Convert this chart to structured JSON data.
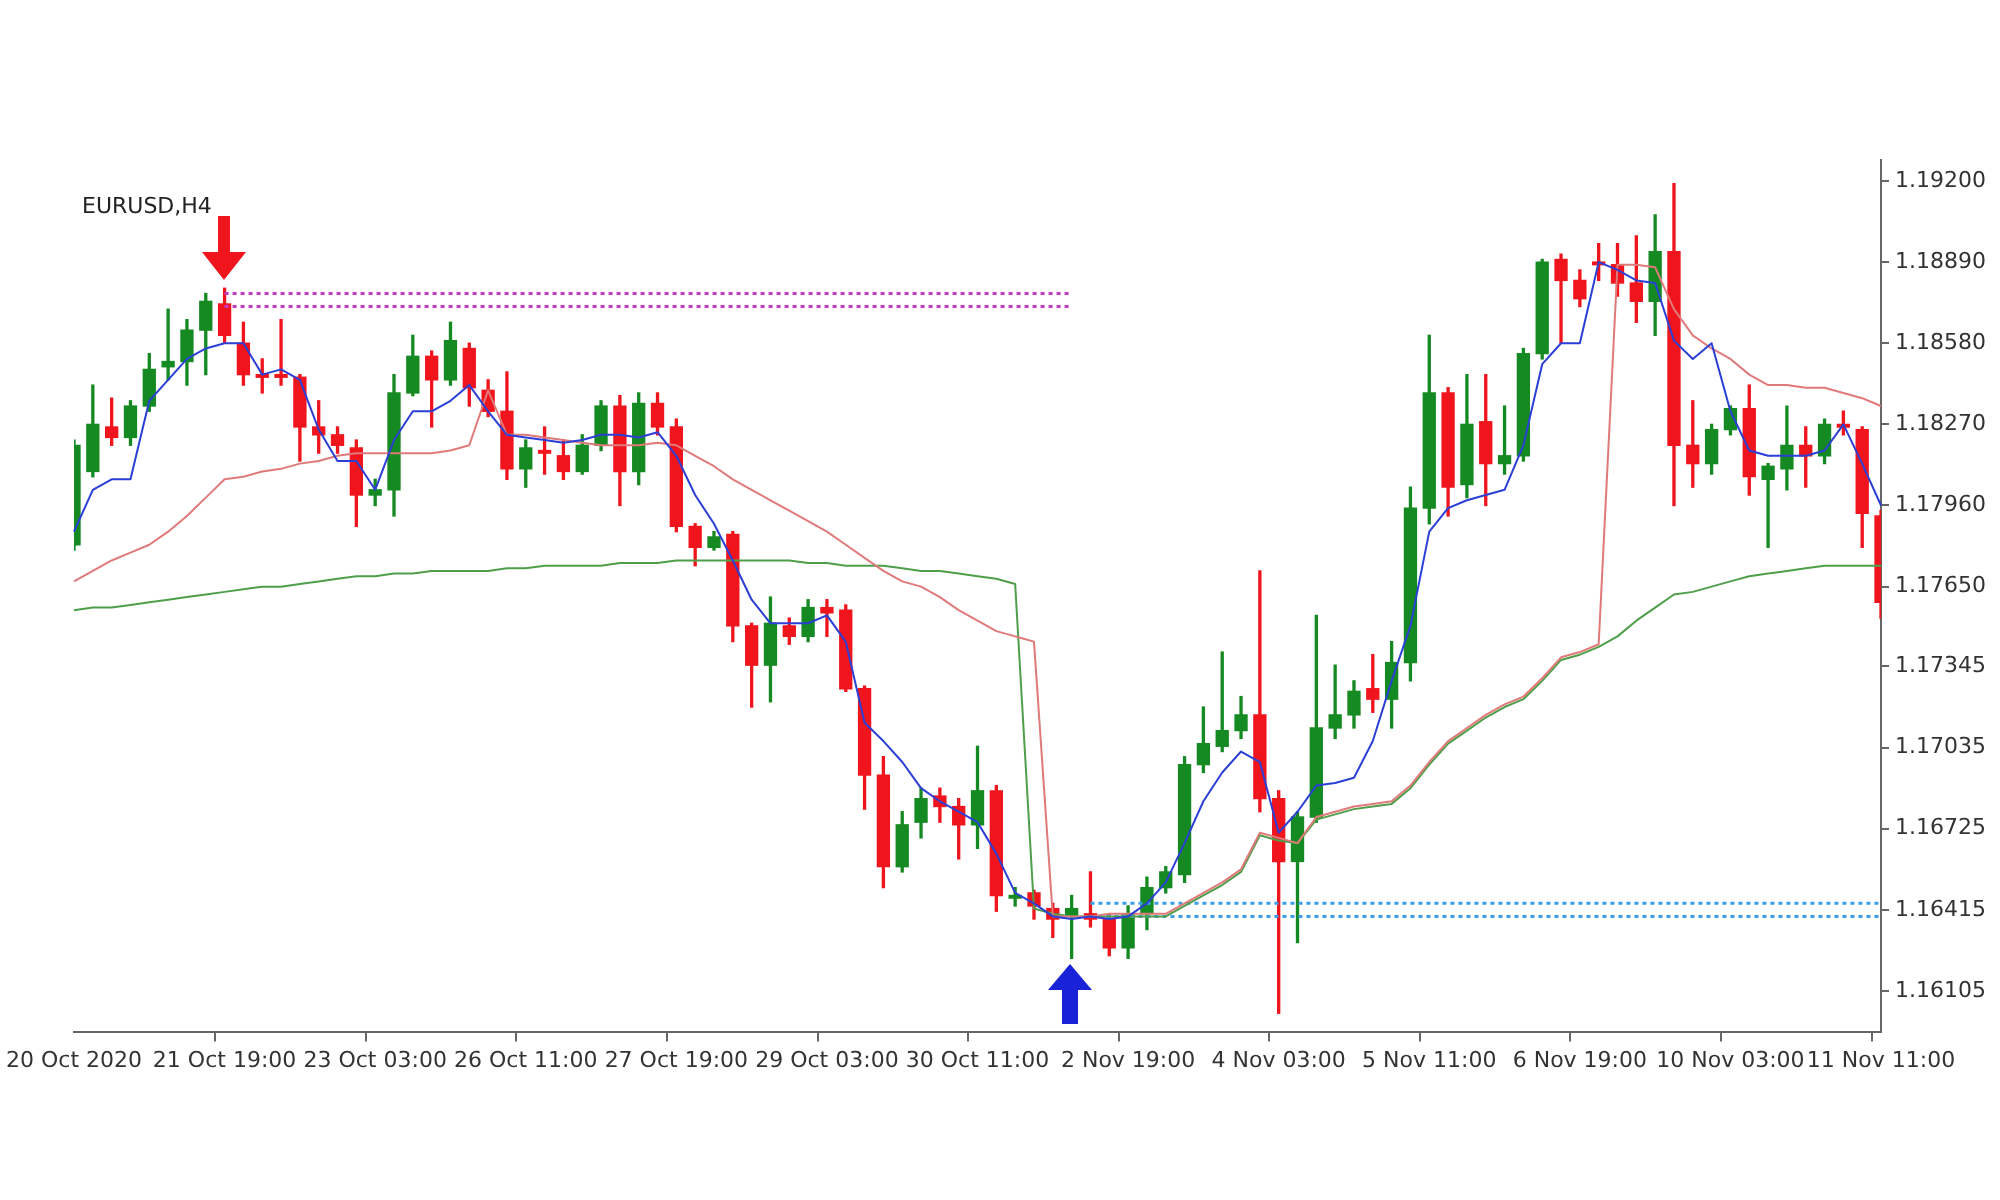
{
  "chart_data": {
    "type": "candlestick",
    "title": "EURUSD,H4",
    "categories": [
      "20 Oct 2020",
      null,
      null,
      null,
      null,
      null,
      null,
      null,
      "21 Oct 19:00",
      null,
      null,
      null,
      null,
      null,
      null,
      null,
      "23 Oct 03:00",
      null,
      null,
      null,
      null,
      null,
      null,
      null,
      "26 Oct 11:00",
      null,
      null,
      null,
      null,
      null,
      null,
      null,
      "27 Oct 19:00",
      null,
      null,
      null,
      null,
      null,
      null,
      null,
      "29 Oct 03:00",
      null,
      null,
      null,
      null,
      null,
      null,
      null,
      "30 Oct 11:00",
      null,
      null,
      null,
      null,
      null,
      null,
      null,
      "2 Nov 19:00",
      null,
      null,
      null,
      null,
      null,
      null,
      null,
      "4 Nov 03:00",
      null,
      null,
      null,
      null,
      null,
      null,
      null,
      "5 Nov 11:00",
      null,
      null,
      null,
      null,
      null,
      null,
      null,
      "6 Nov 19:00",
      null,
      null,
      null,
      null,
      null,
      null,
      null,
      "10 Nov 03:00",
      null,
      null,
      null,
      null,
      null,
      null,
      null,
      "11 Nov 11:00"
    ],
    "ohlc": [
      [
        1.1781,
        1.1821,
        1.1779,
        1.1819
      ],
      [
        1.1809,
        1.1842,
        1.1807,
        1.1827
      ],
      [
        1.1826,
        1.1837,
        1.1819,
        1.1822
      ],
      [
        1.1822,
        1.1836,
        1.1819,
        1.1834
      ],
      [
        1.1834,
        1.1854,
        1.1832,
        1.1848
      ],
      [
        1.1849,
        1.1871,
        1.1844,
        1.1851
      ],
      [
        1.1851,
        1.1867,
        1.1842,
        1.1863
      ],
      [
        1.1863,
        1.1877,
        1.1846,
        1.1874
      ],
      [
        1.1873,
        1.1879,
        1.1858,
        1.1861
      ],
      [
        1.1858,
        1.1866,
        1.1842,
        1.1846
      ],
      [
        1.1846,
        1.1852,
        1.1839,
        1.1845
      ],
      [
        1.1846,
        1.1867,
        1.1842,
        1.1845
      ],
      [
        1.1845,
        1.1846,
        1.1813,
        1.1826
      ],
      [
        1.1826,
        1.1836,
        1.1816,
        1.1823
      ],
      [
        1.1823,
        1.1826,
        1.1816,
        1.1819
      ],
      [
        1.1818,
        1.1821,
        1.1788,
        1.18
      ],
      [
        1.18,
        1.1806,
        1.1796,
        1.1802
      ],
      [
        1.1802,
        1.1846,
        1.1792,
        1.1839
      ],
      [
        1.1839,
        1.1861,
        1.1838,
        1.1853
      ],
      [
        1.1853,
        1.1855,
        1.1826,
        1.1844
      ],
      [
        1.1844,
        1.1866,
        1.1842,
        1.1859
      ],
      [
        1.1856,
        1.1858,
        1.1834,
        1.1841
      ],
      [
        1.184,
        1.1844,
        1.183,
        1.1832
      ],
      [
        1.1832,
        1.1847,
        1.1806,
        1.181
      ],
      [
        1.181,
        1.1821,
        1.1803,
        1.1818
      ],
      [
        1.1817,
        1.1826,
        1.1808,
        1.1816
      ],
      [
        1.1815,
        1.1821,
        1.1806,
        1.1809
      ],
      [
        1.1809,
        1.1823,
        1.1808,
        1.1819
      ],
      [
        1.1819,
        1.1836,
        1.1817,
        1.1834
      ],
      [
        1.1834,
        1.1838,
        1.1796,
        1.1809
      ],
      [
        1.1809,
        1.1839,
        1.1804,
        1.1835
      ],
      [
        1.1835,
        1.1839,
        1.1823,
        1.1826
      ],
      [
        1.1826,
        1.1829,
        1.1786,
        1.1788
      ],
      [
        1.1788,
        1.1789,
        1.1773,
        1.178
      ],
      [
        1.178,
        1.1786,
        1.1779,
        1.1784
      ],
      [
        1.1785,
        1.1786,
        1.1744,
        1.175
      ],
      [
        1.175,
        1.1751,
        1.1719,
        1.1735
      ],
      [
        1.1735,
        1.1761,
        1.1721,
        1.1751
      ],
      [
        1.175,
        1.1753,
        1.1743,
        1.1746
      ],
      [
        1.1746,
        1.176,
        1.1744,
        1.1757
      ],
      [
        1.1757,
        1.176,
        1.1746,
        1.1755
      ],
      [
        1.1756,
        1.1758,
        1.1725,
        1.1726
      ],
      [
        1.1726,
        1.1727,
        1.168,
        1.1693
      ],
      [
        1.1693,
        1.17,
        1.165,
        1.1658
      ],
      [
        1.1658,
        1.1679,
        1.1656,
        1.1674
      ],
      [
        1.1675,
        1.1688,
        1.1669,
        1.1684
      ],
      [
        1.1685,
        1.1688,
        1.1675,
        1.1681
      ],
      [
        1.1681,
        1.1684,
        1.1661,
        1.1674
      ],
      [
        1.1674,
        1.1704,
        1.1665,
        1.1687
      ],
      [
        1.1687,
        1.1689,
        1.1641,
        1.1647
      ],
      [
        1.1646,
        1.165,
        1.1643,
        1.1647
      ],
      [
        1.1648,
        1.1649,
        1.1638,
        1.1643
      ],
      [
        1.1642,
        1.1644,
        1.1631,
        1.1638
      ],
      [
        1.1639,
        1.1647,
        1.1623,
        1.1642
      ],
      [
        1.164,
        1.1656,
        1.1635,
        1.1638
      ],
      [
        1.1638,
        1.164,
        1.1624,
        1.1627
      ],
      [
        1.1627,
        1.1643,
        1.1623,
        1.164
      ],
      [
        1.164,
        1.1654,
        1.1634,
        1.165
      ],
      [
        1.165,
        1.1658,
        1.1648,
        1.1656
      ],
      [
        1.1655,
        1.17,
        1.1652,
        1.1697
      ],
      [
        1.1697,
        1.1719,
        1.1694,
        1.1705
      ],
      [
        1.1704,
        1.174,
        1.1702,
        1.171
      ],
      [
        1.171,
        1.1723,
        1.1707,
        1.1716
      ],
      [
        1.1716,
        1.1771,
        1.1679,
        1.1684
      ],
      [
        1.1684,
        1.1687,
        1.1602,
        1.166
      ],
      [
        1.166,
        1.1679,
        1.1629,
        1.1677
      ],
      [
        1.1677,
        1.1754,
        1.1675,
        1.1711
      ],
      [
        1.1711,
        1.1735,
        1.1707,
        1.1716
      ],
      [
        1.1716,
        1.1729,
        1.1711,
        1.1725
      ],
      [
        1.1726,
        1.1739,
        1.1717,
        1.1722
      ],
      [
        1.1722,
        1.1744,
        1.1711,
        1.1736
      ],
      [
        1.1736,
        1.1803,
        1.1729,
        1.1795
      ],
      [
        1.1795,
        1.1861,
        1.1789,
        1.1839
      ],
      [
        1.1839,
        1.1841,
        1.1792,
        1.1803
      ],
      [
        1.1804,
        1.1846,
        1.1799,
        1.1827
      ],
      [
        1.1828,
        1.1846,
        1.1796,
        1.1812
      ],
      [
        1.1812,
        1.1834,
        1.1808,
        1.1815
      ],
      [
        1.1815,
        1.1856,
        1.1813,
        1.1854
      ],
      [
        1.1854,
        1.189,
        1.1852,
        1.1889
      ],
      [
        1.189,
        1.1892,
        1.1858,
        1.1882
      ],
      [
        1.1882,
        1.1886,
        1.1872,
        1.1875
      ],
      [
        1.1889,
        1.1896,
        1.1882,
        1.1888
      ],
      [
        1.1888,
        1.1896,
        1.1876,
        1.1881
      ],
      [
        1.1881,
        1.1899,
        1.1866,
        1.1874
      ],
      [
        1.1874,
        1.1907,
        1.1861,
        1.1893
      ],
      [
        1.1893,
        1.1919,
        1.1796,
        1.1819
      ],
      [
        1.1819,
        1.1836,
        1.1803,
        1.1812
      ],
      [
        1.1812,
        1.1827,
        1.1808,
        1.1825
      ],
      [
        1.1825,
        1.1834,
        1.1823,
        1.1833
      ],
      [
        1.1833,
        1.1842,
        1.18,
        1.1807
      ],
      [
        1.1806,
        1.1812,
        1.178,
        1.1811
      ],
      [
        1.181,
        1.1834,
        1.1802,
        1.1819
      ],
      [
        1.1819,
        1.1826,
        1.1803,
        1.1815
      ],
      [
        1.1815,
        1.1829,
        1.1812,
        1.1827
      ],
      [
        1.1827,
        1.1832,
        1.1823,
        1.1826
      ],
      [
        1.1825,
        1.1826,
        1.178,
        1.1793
      ],
      [
        1.1792,
        1.1794,
        1.1753,
        1.1759
      ]
    ],
    "colors": [
      "#168a22",
      "#168a22",
      "#f0141c",
      "#168a22",
      "#168a22",
      "#168a22",
      "#168a22",
      "#168a22",
      "#f0141c",
      "#f0141c",
      "#f0141c",
      "#f0141c",
      "#f0141c",
      "#f0141c",
      "#f0141c",
      "#f0141c",
      "#168a22",
      "#168a22",
      "#168a22",
      "#f0141c",
      "#168a22",
      "#f0141c",
      "#f0141c",
      "#f0141c",
      "#168a22",
      "#f0141c",
      "#f0141c",
      "#168a22",
      "#168a22",
      "#f0141c",
      "#168a22",
      "#f0141c",
      "#f0141c",
      "#f0141c",
      "#168a22",
      "#f0141c",
      "#f0141c",
      "#168a22",
      "#f0141c",
      "#168a22",
      "#f0141c",
      "#f0141c",
      "#f0141c",
      "#f0141c",
      "#168a22",
      "#168a22",
      "#f0141c",
      "#f0141c",
      "#168a22",
      "#f0141c",
      "#168a22",
      "#f0141c",
      "#f0141c",
      "#168a22",
      "#f0141c",
      "#f0141c",
      "#168a22",
      "#168a22",
      "#168a22",
      "#168a22",
      "#168a22",
      "#168a22",
      "#168a22",
      "#f0141c",
      "#f0141c",
      "#168a22",
      "#168a22",
      "#168a22",
      "#168a22",
      "#f0141c",
      "#168a22",
      "#168a22",
      "#168a22",
      "#f0141c",
      "#168a22",
      "#f0141c",
      "#168a22",
      "#168a22",
      "#168a22",
      "#f0141c",
      "#f0141c",
      "#f0141c",
      "#f0141c",
      "#f0141c",
      "#168a22",
      "#f0141c",
      "#f0141c",
      "#168a22",
      "#168a22",
      "#f0141c",
      "#168a22",
      "#168a22",
      "#f0141c",
      "#168a22",
      "#f0141c",
      "#f0141c",
      "#f0141c"
    ],
    "series": [
      {
        "type": "line",
        "color": "#2b3fd6",
        "values": [
          1.1786,
          1.1802,
          1.1806,
          1.1806,
          1.1836,
          1.1844,
          1.1852,
          1.1856,
          1.1858,
          1.1858,
          1.1846,
          1.1848,
          1.1844,
          1.1825,
          1.1813,
          1.1813,
          1.1802,
          1.1821,
          1.1832,
          1.1832,
          1.1836,
          1.1842,
          1.1832,
          1.1823,
          1.1822,
          1.1821,
          1.182,
          1.1821,
          1.1823,
          1.1823,
          1.1822,
          1.1824,
          1.1815,
          1.18,
          1.1789,
          1.1775,
          1.176,
          1.1751,
          1.1751,
          1.1751,
          1.1754,
          1.1744,
          1.1713,
          1.1706,
          1.1698,
          1.1688,
          1.1683,
          1.1679,
          1.1675,
          1.1663,
          1.1648,
          1.1644,
          1.1639,
          1.1638,
          1.1639,
          1.1638,
          1.1639,
          1.1644,
          1.1652,
          1.1667,
          1.1683,
          1.1694,
          1.1702,
          1.1698,
          1.1671,
          1.1679,
          1.1689,
          1.169,
          1.1692,
          1.1706,
          1.1729,
          1.175,
          1.1786,
          1.1795,
          1.1798,
          1.18,
          1.1802,
          1.1819,
          1.185,
          1.1858,
          1.1858,
          1.1889,
          1.1886,
          1.1882,
          1.1881,
          1.1859,
          1.1852,
          1.1858,
          1.1832,
          1.1817,
          1.1815,
          1.1815,
          1.1815,
          1.1817,
          1.1827,
          1.1812,
          1.1796
        ]
      },
      {
        "type": "line",
        "color": "#e07a7a",
        "values": [
          1.1767,
          1.1771,
          1.1775,
          1.1778,
          1.1781,
          1.1786,
          1.1792,
          1.1799,
          1.1806,
          1.1807,
          1.1809,
          1.181,
          1.1812,
          1.1813,
          1.1815,
          1.1816,
          1.1816,
          1.1816,
          1.1816,
          1.1816,
          1.1817,
          1.1819,
          1.184,
          1.1823,
          1.1823,
          1.1822,
          1.1821,
          1.182,
          1.1819,
          1.1819,
          1.1819,
          1.182,
          1.1819,
          1.1815,
          1.1811,
          1.1806,
          1.1802,
          1.1798,
          1.1794,
          1.179,
          1.1786,
          1.1781,
          1.1776,
          1.1771,
          1.1767,
          1.1765,
          1.1761,
          1.1756,
          1.1752,
          1.1748,
          1.1746,
          1.1744,
          1.1639,
          1.1639,
          1.1639,
          1.164,
          1.164,
          1.164,
          1.164,
          1.1644,
          1.1648,
          1.1652,
          1.1657,
          1.1671,
          1.1669,
          1.1667,
          1.1677,
          1.1679,
          1.1681,
          1.1682,
          1.1683,
          1.1689,
          1.1698,
          1.1706,
          1.1711,
          1.1716,
          1.172,
          1.1723,
          1.173,
          1.1738,
          1.174,
          1.1743,
          1.1888,
          1.1888,
          1.1887,
          1.1871,
          1.1861,
          1.1856,
          1.1852,
          1.1846,
          1.1842,
          1.1842,
          1.1841,
          1.1841,
          1.1839,
          1.1837,
          1.1834
        ]
      },
      {
        "type": "line",
        "color": "#4f9e4a",
        "values": [
          1.1756,
          1.1757,
          1.1757,
          1.1758,
          1.1759,
          1.176,
          1.1761,
          1.1762,
          1.1763,
          1.1764,
          1.1765,
          1.1765,
          1.1766,
          1.1767,
          1.1768,
          1.1769,
          1.1769,
          1.177,
          1.177,
          1.1771,
          1.1771,
          1.1771,
          1.1771,
          1.1772,
          1.1772,
          1.1773,
          1.1773,
          1.1773,
          1.1773,
          1.1774,
          1.1774,
          1.1774,
          1.1775,
          1.1775,
          1.1775,
          1.1775,
          1.1775,
          1.1775,
          1.1775,
          1.1774,
          1.1774,
          1.1773,
          1.1773,
          1.1773,
          1.1772,
          1.1771,
          1.1771,
          1.177,
          1.1769,
          1.1768,
          1.1766,
          1.1642,
          1.164,
          1.1639,
          1.1639,
          1.1639,
          1.1639,
          1.1639,
          1.1639,
          1.1643,
          1.1647,
          1.1651,
          1.1656,
          1.167,
          1.1668,
          1.1667,
          1.1676,
          1.1678,
          1.168,
          1.1681,
          1.1682,
          1.1688,
          1.1697,
          1.1705,
          1.171,
          1.1715,
          1.1719,
          1.1722,
          1.1729,
          1.1737,
          1.1739,
          1.1742,
          1.1746,
          1.1752,
          1.1757,
          1.1762,
          1.1763,
          1.1765,
          1.1767,
          1.1769,
          1.177,
          1.1771,
          1.1772,
          1.1773,
          1.1773,
          1.1773,
          1.1773
        ]
      },
      {
        "type": "line",
        "color": "#c43cc4",
        "line_style": "dotted",
        "values": [
          null,
          null,
          null,
          null,
          null,
          null,
          null,
          null,
          1.1877,
          1.1877,
          1.1877,
          1.1877,
          1.1877,
          1.1877,
          1.1877,
          1.1877,
          1.1877,
          1.1877,
          1.1877,
          1.1877,
          1.1877,
          1.1877,
          1.1877,
          1.1877,
          1.1877,
          1.1877,
          1.1877,
          1.1877,
          1.1877,
          1.1877,
          1.1877,
          1.1877,
          1.1877,
          1.1877,
          1.1877,
          1.1877,
          1.1877,
          1.1877,
          1.1877,
          1.1877,
          1.1877,
          1.1877,
          1.1877,
          1.1877,
          1.1877,
          1.1877,
          1.1877,
          1.1877,
          1.1877,
          1.1877,
          1.1877,
          1.1877,
          1.1877,
          1.1877,
          null,
          null,
          null,
          null,
          null,
          null,
          null,
          null,
          null,
          null,
          null,
          null,
          null,
          null,
          null,
          null,
          null,
          null,
          null,
          null,
          null,
          null,
          null,
          null,
          null,
          null,
          null,
          null,
          null,
          null,
          null,
          null,
          null,
          null,
          null,
          null,
          null,
          null,
          null,
          null,
          null,
          null,
          null
        ]
      },
      {
        "type": "line",
        "color": "#c43cc4",
        "line_style": "dotted",
        "values": [
          null,
          null,
          null,
          null,
          null,
          null,
          null,
          null,
          1.1872,
          1.1872,
          1.1872,
          1.1872,
          1.1872,
          1.1872,
          1.1872,
          1.1872,
          1.1872,
          1.1872,
          1.1872,
          1.1872,
          1.1872,
          1.1872,
          1.1872,
          1.1872,
          1.1872,
          1.1872,
          1.1872,
          1.1872,
          1.1872,
          1.1872,
          1.1872,
          1.1872,
          1.1872,
          1.1872,
          1.1872,
          1.1872,
          1.1872,
          1.1872,
          1.1872,
          1.1872,
          1.1872,
          1.1872,
          1.1872,
          1.1872,
          1.1872,
          1.1872,
          1.1872,
          1.1872,
          1.1872,
          1.1872,
          1.1872,
          1.1872,
          1.1872,
          1.1872,
          null,
          null,
          null,
          null,
          null,
          null,
          null,
          null,
          null,
          null,
          null,
          null,
          null,
          null,
          null,
          null,
          null,
          null,
          null,
          null,
          null,
          null,
          null,
          null,
          null,
          null,
          null,
          null,
          null,
          null,
          null,
          null,
          null,
          null,
          null,
          null,
          null,
          null,
          null,
          null,
          null,
          null,
          null
        ]
      },
      {
        "type": "line",
        "color": "#3a9ee8",
        "line_style": "dotted",
        "values": [
          null,
          null,
          null,
          null,
          null,
          null,
          null,
          null,
          null,
          null,
          null,
          null,
          null,
          null,
          null,
          null,
          null,
          null,
          null,
          null,
          null,
          null,
          null,
          null,
          null,
          null,
          null,
          null,
          null,
          null,
          null,
          null,
          null,
          null,
          null,
          null,
          null,
          null,
          null,
          null,
          null,
          null,
          null,
          null,
          null,
          null,
          null,
          null,
          null,
          null,
          null,
          null,
          null,
          null,
          1.1644,
          1.1644,
          1.1644,
          1.1644,
          1.1644,
          1.1644,
          1.1644,
          1.1644,
          1.1644,
          1.1644,
          1.1644,
          1.1644,
          1.1644,
          1.1644,
          1.1644,
          1.1644,
          1.1644,
          1.1644,
          1.1644,
          1.1644,
          1.1644,
          1.1644,
          1.1644,
          1.1644,
          1.1644,
          1.1644,
          1.1644,
          1.1644,
          1.1644,
          1.1644,
          1.1644,
          1.1644,
          1.1644,
          1.1644,
          1.1644,
          1.1644,
          1.1644,
          1.1644,
          1.1644,
          1.1644,
          1.1644,
          1.1644,
          1.1644
        ]
      },
      {
        "type": "line",
        "color": "#3a9ee8",
        "line_style": "dotted",
        "values": [
          null,
          null,
          null,
          null,
          null,
          null,
          null,
          null,
          null,
          null,
          null,
          null,
          null,
          null,
          null,
          null,
          null,
          null,
          null,
          null,
          null,
          null,
          null,
          null,
          null,
          null,
          null,
          null,
          null,
          null,
          null,
          null,
          null,
          null,
          null,
          null,
          null,
          null,
          null,
          null,
          null,
          null,
          null,
          null,
          null,
          null,
          null,
          null,
          null,
          null,
          null,
          null,
          null,
          null,
          1.1639,
          1.1639,
          1.1639,
          1.1639,
          1.1639,
          1.1639,
          1.1639,
          1.1639,
          1.1639,
          1.1639,
          1.1639,
          1.1639,
          1.1639,
          1.1639,
          1.1639,
          1.1639,
          1.1639,
          1.1639,
          1.1639,
          1.1639,
          1.1639,
          1.1639,
          1.1639,
          1.1639,
          1.1639,
          1.1639,
          1.1639,
          1.1639,
          1.1639,
          1.1639,
          1.1639,
          1.1639,
          1.1639,
          1.1639,
          1.1639,
          1.1639,
          1.1639,
          1.1639,
          1.1639,
          1.1639,
          1.1639,
          1.1639,
          1.1639
        ]
      }
    ],
    "ylim": [
      1.1595,
      1.1928
    ],
    "yticks": [
      {
        "value": 1.192,
        "label": "1.19200"
      },
      {
        "value": 1.1889,
        "label": "1.18890"
      },
      {
        "value": 1.1858,
        "label": "1.18580"
      },
      {
        "value": 1.1827,
        "label": "1.18270"
      },
      {
        "value": 1.1796,
        "label": "1.17960"
      },
      {
        "value": 1.1765,
        "label": "1.17650"
      },
      {
        "value": 1.17345,
        "label": "1.17345"
      },
      {
        "value": 1.17035,
        "label": "1.17035"
      },
      {
        "value": 1.16725,
        "label": "1.16725"
      },
      {
        "value": 1.16415,
        "label": "1.16415"
      },
      {
        "value": 1.16105,
        "label": "1.16105"
      }
    ],
    "marker": "none"
  }
}
